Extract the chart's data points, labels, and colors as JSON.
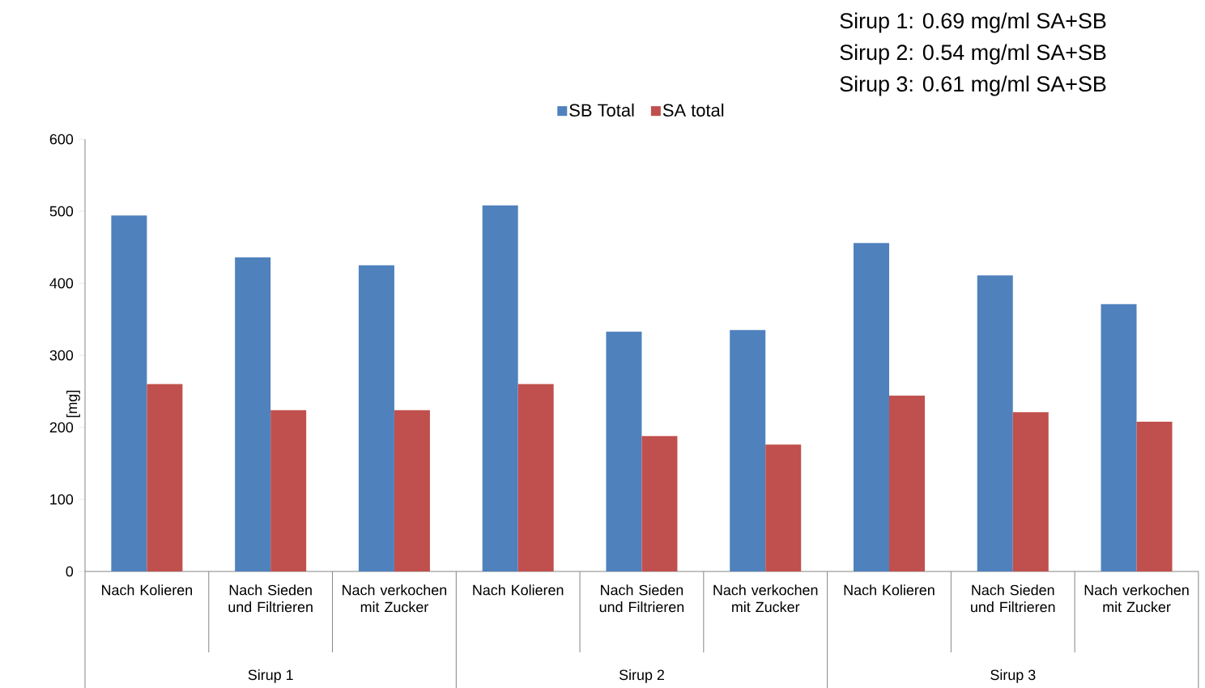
{
  "chart_data": {
    "type": "bar",
    "categories": [
      "Nach Kolieren",
      "Nach Sieden und Filtrieren",
      "Nach verkochen mit Zucker",
      "Nach Kolieren",
      "Nach Sieden und Filtrieren",
      "Nach verkochen mit Zucker",
      "Nach Kolieren",
      "Nach Sieden und Filtrieren",
      "Nach verkochen mit Zucker"
    ],
    "series": [
      {
        "name": "SB Total",
        "color": "#4f81bd",
        "values": [
          494,
          436,
          425,
          508,
          333,
          335,
          456,
          411,
          371
        ]
      },
      {
        "name": "SA total",
        "color": "#c0504d",
        "values": [
          260,
          224,
          224,
          260,
          188,
          176,
          244,
          221,
          208
        ]
      }
    ],
    "ylabel": "[mg]",
    "ylim": [
      0,
      600
    ],
    "yticks": [
      0,
      100,
      200,
      300,
      400,
      500,
      600
    ],
    "legend": "top",
    "annotations": [
      "Sirup 1: 0.69 mg/ml SA+SB",
      "Sirup 2: 0.54 mg/ml SA+SB",
      "Sirup 3: 0.61 mg/ml SA+SB",
      "Sirup 1",
      "Sirup 2",
      "Sirup 3"
    ]
  }
}
